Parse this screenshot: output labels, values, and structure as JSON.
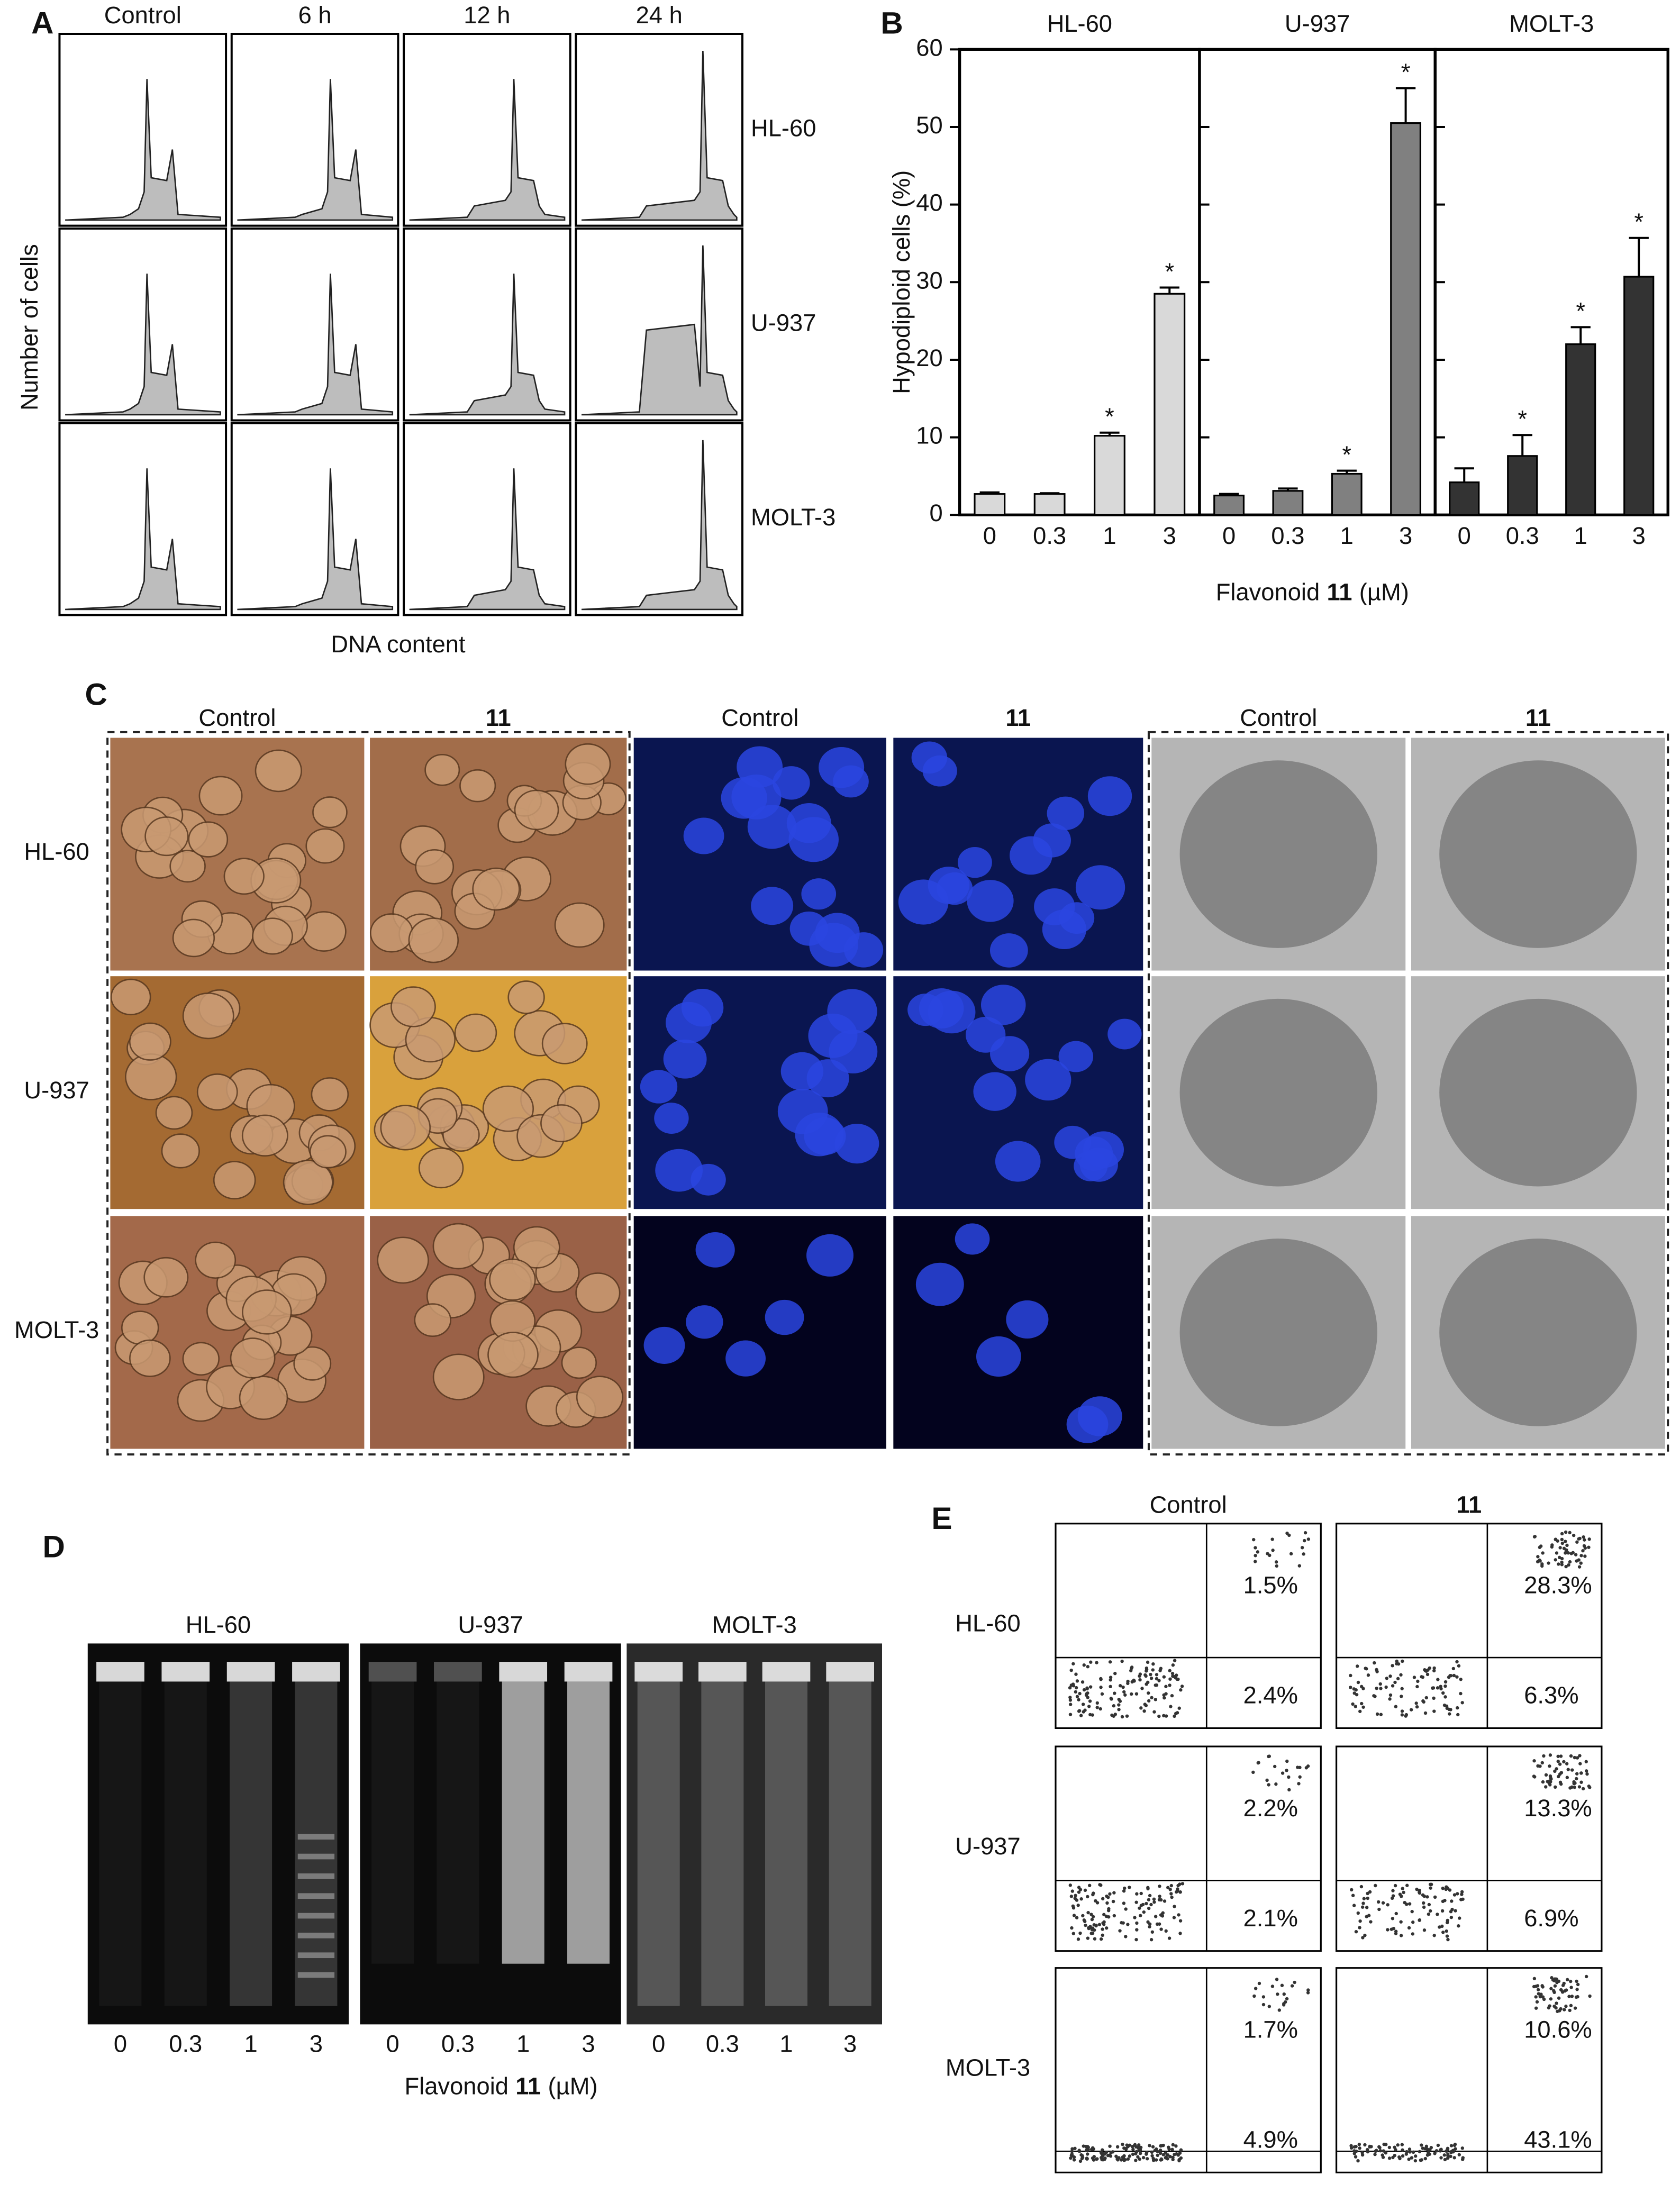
{
  "panel_a": {
    "label": "A",
    "columns": [
      "Control",
      "6 h",
      "12 h",
      "24 h"
    ],
    "rows": [
      "HL-60",
      "U-937",
      "MOLT-3"
    ],
    "y_label": "Number of cells",
    "x_label": "DNA content"
  },
  "chart_data": {
    "type": "bar",
    "label": "B",
    "y_label": "Hypodiploid cells (%)",
    "x_label": [
      "Flavonoid",
      "11",
      "(µM)"
    ],
    "categories": [
      "0",
      "0.3",
      "1",
      "3"
    ],
    "marker_text": "*",
    "series": [
      {
        "name": "HL-60",
        "color": "#d9d9d9",
        "values": [
          2.7,
          2.7,
          10.2,
          28.5
        ],
        "errors": [
          0.2,
          0.1,
          0.4,
          0.8
        ],
        "significant": [
          false,
          false,
          true,
          true
        ]
      },
      {
        "name": "U-937",
        "color": "#808080",
        "values": [
          2.5,
          3.1,
          5.3,
          50.5
        ],
        "errors": [
          0.2,
          0.3,
          0.4,
          4.5
        ],
        "significant": [
          false,
          false,
          true,
          true
        ]
      },
      {
        "name": "MOLT-3",
        "color": "#333333",
        "values": [
          4.2,
          7.6,
          22,
          30.7
        ],
        "errors": [
          1.8,
          2.7,
          2.2,
          5
        ],
        "significant": [
          false,
          true,
          true,
          true
        ]
      }
    ],
    "ylim": [
      0,
      60
    ],
    "yticks": [
      0,
      10,
      20,
      30,
      40,
      50,
      60
    ]
  },
  "panel_c": {
    "label": "C",
    "columns": [
      "Control",
      "11",
      "Control",
      "11",
      "Control",
      "11"
    ],
    "rows": [
      "HL-60",
      "U-937",
      "MOLT-3"
    ]
  },
  "panel_d": {
    "label": "D",
    "gels": [
      "HL-60",
      "U-937",
      "MOLT-3"
    ],
    "lanes": [
      "0",
      "0.3",
      "1",
      "3"
    ],
    "x_label": [
      "Flavonoid",
      "11",
      "(µM)"
    ]
  },
  "panel_e": {
    "label": "E",
    "columns": [
      "Control",
      "11"
    ],
    "rows": [
      "HL-60",
      "U-937",
      "MOLT-3"
    ],
    "upper": [
      [
        "1.5%",
        "28.3%"
      ],
      [
        "2.2%",
        "13.3%"
      ],
      [
        "1.7%",
        "10.6%"
      ]
    ],
    "lower": [
      [
        "2.4%",
        "6.3%"
      ],
      [
        "2.1%",
        "6.9%"
      ],
      [
        "4.9%",
        "43.1%"
      ]
    ]
  }
}
